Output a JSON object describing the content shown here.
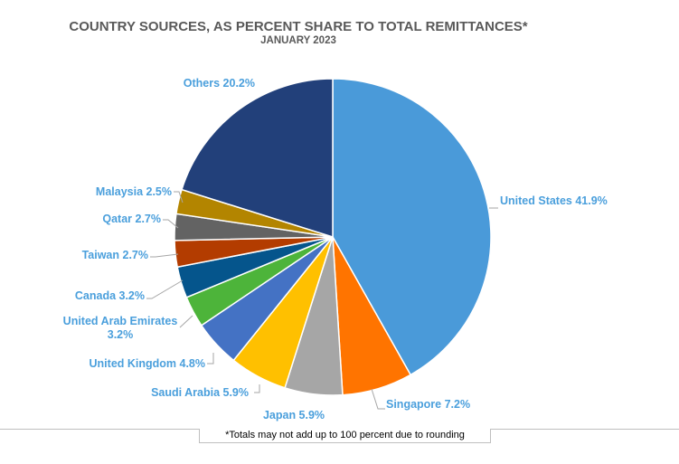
{
  "chart_data": {
    "type": "pie",
    "title": "COUNTRY SOURCES, AS PERCENT SHARE TO TOTAL REMITTANCES*",
    "subtitle": "JANUARY 2023",
    "slices": [
      {
        "name": "United States",
        "value": 41.9,
        "label": "United States 41.9%",
        "color": "#4a9ad9"
      },
      {
        "name": "Singapore",
        "value": 7.2,
        "label": "Singapore 7.2%",
        "color": "#ff7400"
      },
      {
        "name": "Japan",
        "value": 5.9,
        "label": "Japan 5.9%",
        "color": "#a6a6a6"
      },
      {
        "name": "Saudi Arabia",
        "value": 5.9,
        "label": "Saudi Arabia 5.9%",
        "color": "#ffc000"
      },
      {
        "name": "United Kingdom",
        "value": 4.8,
        "label": "United Kingdom 4.8%",
        "color": "#4472c4"
      },
      {
        "name": "United Arab Emirates",
        "value": 3.2,
        "label_lines": [
          "United Arab Emirates",
          "3.2%"
        ],
        "color": "#4db43a"
      },
      {
        "name": "Canada",
        "value": 3.2,
        "label": "Canada 3.2%",
        "color": "#05558c"
      },
      {
        "name": "Taiwan",
        "value": 2.7,
        "label": "Taiwan 2.7%",
        "color": "#b33c00"
      },
      {
        "name": "Qatar",
        "value": 2.7,
        "label": "Qatar 2.7%",
        "color": "#636363"
      },
      {
        "name": "Malaysia",
        "value": 2.5,
        "label": "Malaysia 2.5%",
        "color": "#b38500"
      },
      {
        "name": "Others",
        "value": 20.2,
        "label": "Others 20.2%",
        "color": "#22407a"
      }
    ],
    "footnote": "*Totals may not add up to 100 percent due to rounding"
  }
}
